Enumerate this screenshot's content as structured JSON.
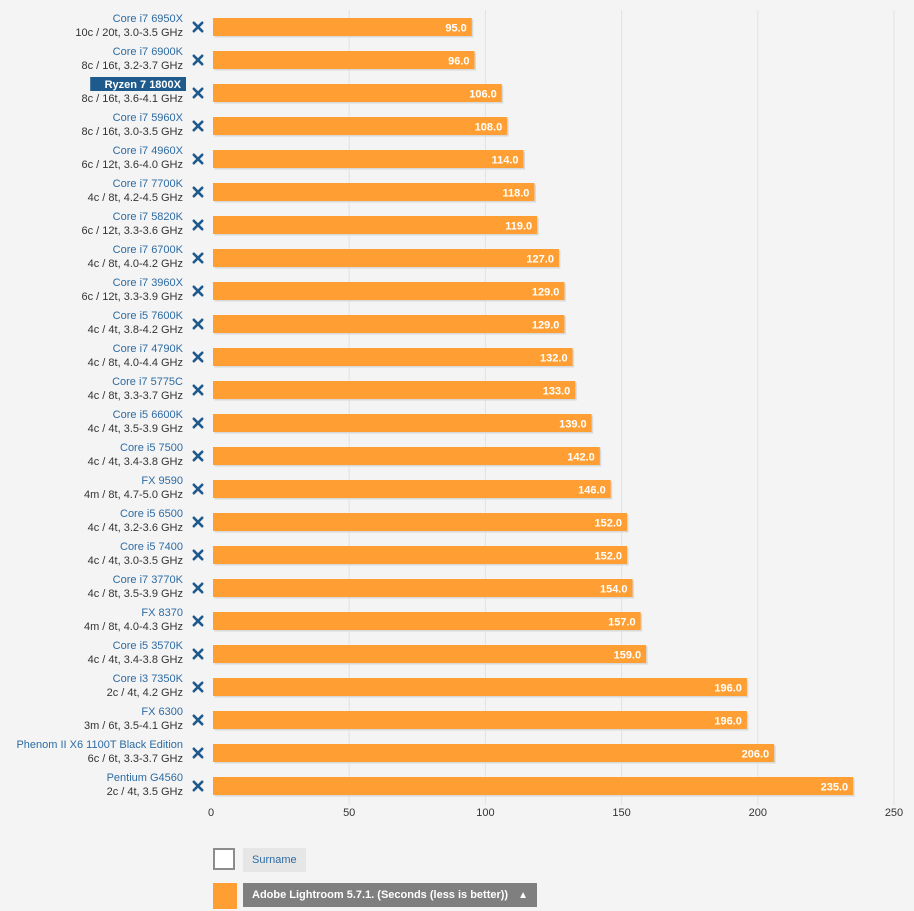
{
  "chart_data": {
    "type": "bar",
    "orientation": "horizontal",
    "categories": [
      {
        "name": "Core i7 6950X",
        "spec": "10c / 20t, 3.0-3.5 GHz"
      },
      {
        "name": "Core i7 6900K",
        "spec": "8c / 16t, 3.2-3.7 GHz"
      },
      {
        "name": "Ryzen 7 1800X",
        "spec": "8c / 16t, 3.6-4.1 GHz",
        "highlight": true
      },
      {
        "name": "Core i7 5960X",
        "spec": "8c / 16t, 3.0-3.5 GHz"
      },
      {
        "name": "Core i7 4960X",
        "spec": "6c / 12t, 3.6-4.0 GHz"
      },
      {
        "name": "Core i7 7700K",
        "spec": "4c / 8t, 4.2-4.5 GHz"
      },
      {
        "name": "Core i7 5820K",
        "spec": "6c / 12t, 3.3-3.6 GHz"
      },
      {
        "name": "Core i7 6700K",
        "spec": "4c / 8t, 4.0-4.2 GHz"
      },
      {
        "name": "Core i7 3960X",
        "spec": "6c / 12t, 3.3-3.9 GHz"
      },
      {
        "name": "Core i5 7600K",
        "spec": "4c / 4t, 3.8-4.2 GHz"
      },
      {
        "name": "Core i7 4790K",
        "spec": "4c / 8t, 4.0-4.4 GHz"
      },
      {
        "name": "Core i7 5775C",
        "spec": "4c / 8t, 3.3-3.7 GHz"
      },
      {
        "name": "Core i5 6600K",
        "spec": "4c / 4t, 3.5-3.9 GHz"
      },
      {
        "name": "Core i5 7500",
        "spec": "4c / 4t, 3.4-3.8 GHz"
      },
      {
        "name": "FX 9590",
        "spec": "4m / 8t, 4.7-5.0 GHz"
      },
      {
        "name": "Core i5 6500",
        "spec": "4c / 4t, 3.2-3.6 GHz"
      },
      {
        "name": "Core i5 7400",
        "spec": "4c / 4t, 3.0-3.5 GHz"
      },
      {
        "name": "Core i7 3770K",
        "spec": "4c / 8t, 3.5-3.9 GHz"
      },
      {
        "name": "FX 8370",
        "spec": "4m / 8t, 4.0-4.3 GHz"
      },
      {
        "name": "Core i5 3570K",
        "spec": "4c / 4t, 3.4-3.8 GHz"
      },
      {
        "name": "Core i3 7350K",
        "spec": "2c / 4t, 4.2 GHz"
      },
      {
        "name": "FX 6300",
        "spec": "3m / 6t, 3.5-4.1 GHz"
      },
      {
        "name": "Phenom II X6 1100T Black Edition",
        "spec": "6c / 6t, 3.3-3.7 GHz"
      },
      {
        "name": "Pentium G4560",
        "spec": "2c / 4t, 3.5 GHz"
      }
    ],
    "series": [
      {
        "name": "Adobe Lightroom 5.7.1. (Seconds (less is better))",
        "color": "#ff9f33",
        "values": [
          95.0,
          96.0,
          106.0,
          108.0,
          114.0,
          118.0,
          119.0,
          127.0,
          129.0,
          129.0,
          132.0,
          133.0,
          139.0,
          142.0,
          146.0,
          152.0,
          152.0,
          154.0,
          157.0,
          159.0,
          196.0,
          196.0,
          206.0,
          235.0
        ]
      }
    ],
    "xlim": [
      0,
      250
    ],
    "xticks": [
      0,
      50,
      100,
      150,
      200,
      250
    ],
    "grid": true,
    "value_label_decimals": 1,
    "remove_icon": "close-x-icon",
    "colors": {
      "bar": "#ff9f33",
      "label_text": "#2d6ba3",
      "spec_text": "#333333",
      "highlight_bg": "#1f5a8c",
      "remove_icon": "#1f5a8c",
      "grid": "#e2e2e2",
      "background": "#f4f4f4"
    }
  },
  "legend": [
    {
      "label": "Surname",
      "active": false
    },
    {
      "label": "Adobe Lightroom 5.7.1. (Seconds (less is better))",
      "active": true,
      "arrow": "▲"
    }
  ]
}
